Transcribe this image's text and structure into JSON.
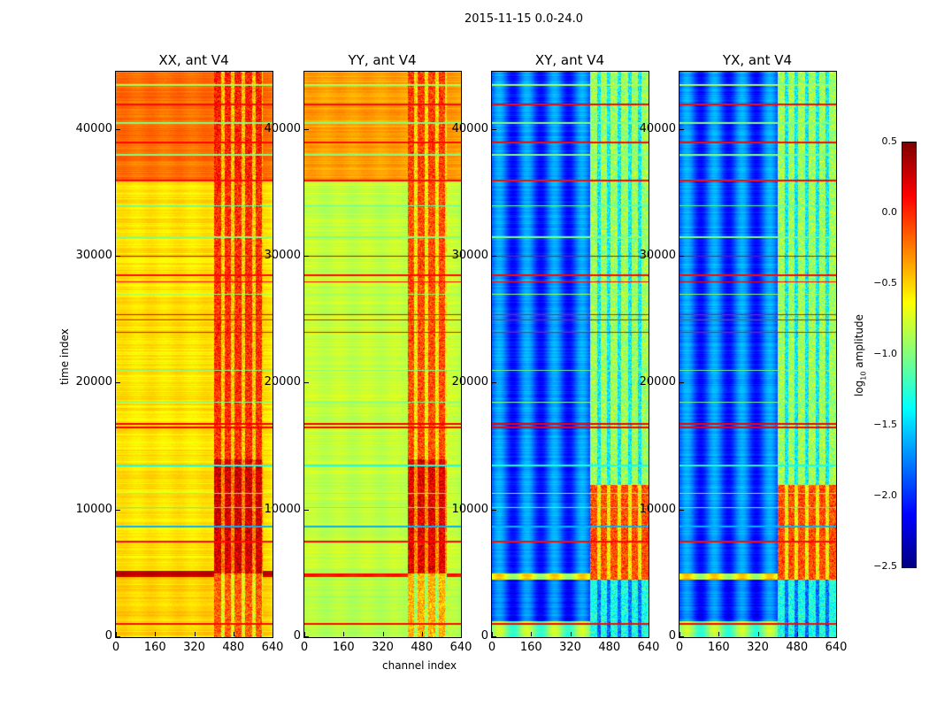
{
  "suptitle": "2015-11-15 0.0-24.0",
  "xlabel": "channel index",
  "ylabel": "time index",
  "chart_data": [
    {
      "type": "heatmap",
      "title": "XX, ant V4",
      "xlim": [
        0,
        640
      ],
      "ylim": [
        0,
        44600
      ],
      "xticks": [
        "0",
        "160",
        "320",
        "480",
        "640"
      ],
      "yticks": [
        "0",
        "10000",
        "20000",
        "30000",
        "40000"
      ],
      "base": [
        [
          0,
          4700,
          -0.5
        ],
        [
          4700,
          5200,
          0.3
        ],
        [
          5200,
          36000,
          -0.55
        ],
        [
          36000,
          44600,
          -0.2
        ]
      ],
      "stripe": 0.03,
      "rfi": {
        "ch": [
          400,
          600
        ],
        "bands": [
          [
            0,
            5000,
            -0.15
          ],
          [
            5000,
            14000,
            0.25
          ],
          [
            14000,
            36000,
            0.0
          ],
          [
            36000,
            44600,
            0.05
          ]
        ]
      }
    },
    {
      "type": "heatmap",
      "title": "YY, ant V4",
      "xlim": [
        0,
        640
      ],
      "ylim": [
        0,
        44600
      ],
      "xticks": [
        "0",
        "160",
        "320",
        "480",
        "640"
      ],
      "yticks": [
        "0",
        "10000",
        "20000",
        "30000",
        "40000"
      ],
      "base": [
        [
          0,
          4700,
          -0.85
        ],
        [
          4700,
          5000,
          0.1
        ],
        [
          5000,
          36000,
          -0.8
        ],
        [
          36000,
          44600,
          -0.35
        ]
      ],
      "stripe": 0.03,
      "rfi": {
        "ch": [
          420,
          580
        ],
        "bands": [
          [
            0,
            5000,
            -0.4
          ],
          [
            5000,
            14000,
            0.2
          ],
          [
            14000,
            36000,
            -0.1
          ],
          [
            36000,
            44600,
            -0.05
          ]
        ]
      }
    },
    {
      "type": "heatmap",
      "title": "XY, ant V4",
      "xlim": [
        0,
        640
      ],
      "ylim": [
        0,
        44600
      ],
      "xticks": [
        "0",
        "160",
        "320",
        "480",
        "640"
      ],
      "yticks": [
        "0",
        "10000",
        "20000",
        "30000",
        "40000"
      ],
      "base": [
        [
          0,
          1200,
          -1.0
        ],
        [
          1200,
          4500,
          -1.9
        ],
        [
          4500,
          5000,
          -0.7
        ],
        [
          5000,
          44600,
          -1.85
        ]
      ],
      "stripe": 0.25,
      "rfi": {
        "ch": [
          400,
          640
        ],
        "bands": [
          [
            0,
            4500,
            -1.3
          ],
          [
            4500,
            12000,
            -0.1
          ],
          [
            12000,
            44600,
            -0.9
          ]
        ]
      }
    },
    {
      "type": "heatmap",
      "title": "YX, ant V4",
      "xlim": [
        0,
        640
      ],
      "ylim": [
        0,
        44600
      ],
      "xticks": [
        "0",
        "160",
        "320",
        "480",
        "640"
      ],
      "yticks": [
        "0",
        "10000",
        "20000",
        "30000",
        "40000"
      ],
      "base": [
        [
          0,
          1200,
          -1.0
        ],
        [
          1200,
          4500,
          -1.9
        ],
        [
          4500,
          5000,
          -0.7
        ],
        [
          5000,
          44600,
          -1.85
        ]
      ],
      "stripe": 0.25,
      "rfi": {
        "ch": [
          400,
          640
        ],
        "bands": [
          [
            0,
            4500,
            -1.3
          ],
          [
            4500,
            12000,
            -0.1
          ],
          [
            12000,
            44600,
            -0.9
          ]
        ]
      }
    }
  ],
  "lines": [
    [
      1000,
      0.1
    ],
    [
      7500,
      0.1
    ],
    [
      8700,
      -1.6
    ],
    [
      10200,
      -1.2
    ],
    [
      11300,
      -1.0
    ],
    [
      13500,
      -1.3
    ],
    [
      16500,
      0.15
    ],
    [
      16800,
      0.15
    ],
    [
      18500,
      -1.0
    ],
    [
      21000,
      -1.0
    ],
    [
      24000,
      0.1
    ],
    [
      25000,
      0.1
    ],
    [
      25400,
      0.1
    ],
    [
      27000,
      -0.9
    ],
    [
      28000,
      0.1
    ],
    [
      28500,
      0.1
    ],
    [
      30000,
      0.2
    ],
    [
      31500,
      -1.0
    ],
    [
      34000,
      -1.1
    ],
    [
      36000,
      0.1
    ],
    [
      38000,
      -1.0
    ],
    [
      39000,
      0.1
    ],
    [
      40500,
      -1.0
    ],
    [
      42000,
      0.1
    ],
    [
      43500,
      -0.9
    ]
  ],
  "colorbar": {
    "label": "log10 amplitude",
    "min": -2.5,
    "max": 0.5,
    "ticks": [
      "0.5",
      "0.0",
      "−0.5",
      "−1.0",
      "−1.5",
      "−2.0",
      "−2.5"
    ]
  }
}
